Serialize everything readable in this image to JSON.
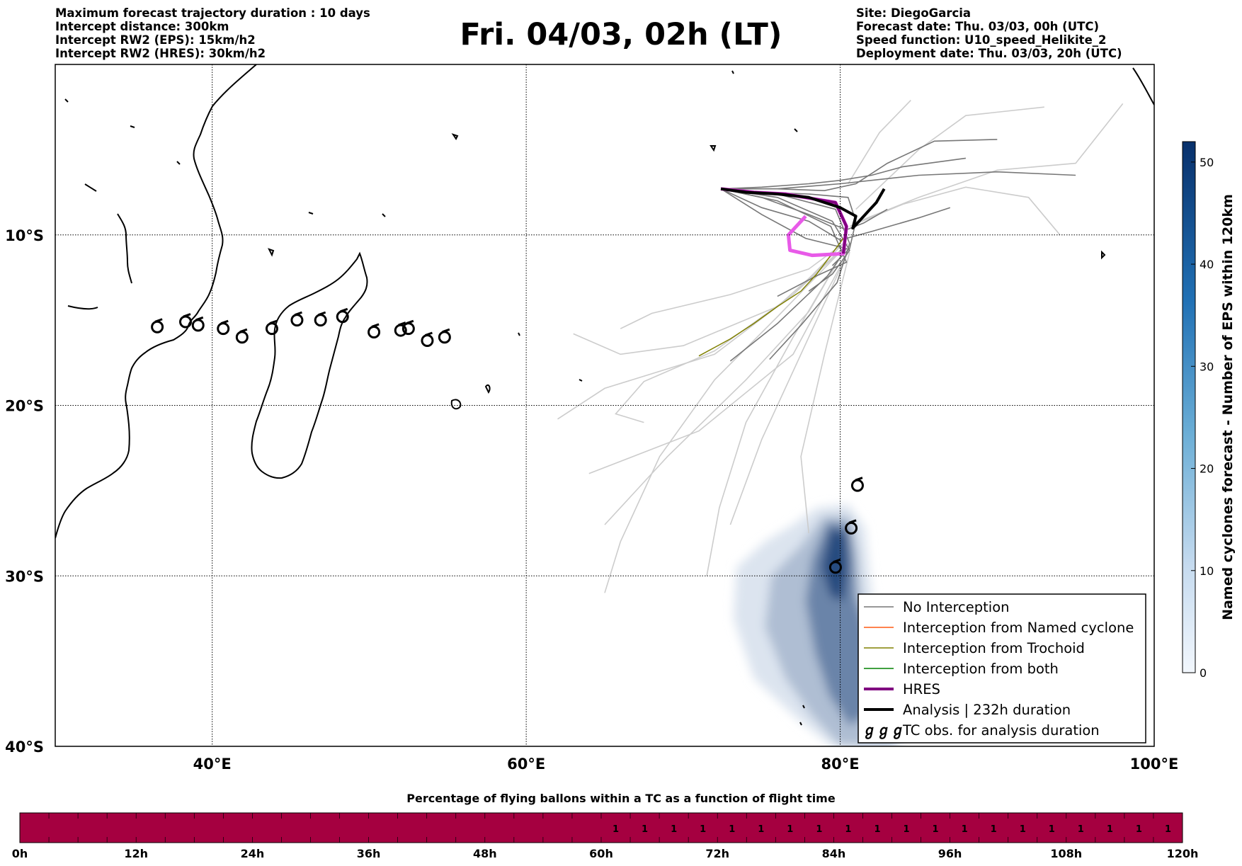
{
  "header": {
    "left_lines": [
      "Maximum forecast trajectory duration : 10 days",
      "Intercept distance: 300km",
      "Intercept RW2 (EPS):  15km/h2",
      "Intercept RW2 (HRES): 30km/h2"
    ],
    "right_lines": [
      "Site: DiegoGarcia",
      "Forecast date: Thu. 03/03, 00h (UTC)",
      "Speed function: U10_speed_Helikite_2",
      "Deployment date: Thu. 03/03, 20h (UTC)"
    ],
    "title": "Fri. 04/03, 02h (LT)"
  },
  "colors": {
    "no_interception": "#777777",
    "named_cyclone": "#ff5a14",
    "trochoid": "#808000",
    "both": "#008000",
    "hres": "#800080",
    "hres_highlight": "#e85ae8",
    "analysis": "#000000",
    "light_traj": "#cccccc",
    "bottom_bar": "#a50040",
    "cmap_light": "#f2f7fd",
    "cmap_dark": "#08306b"
  },
  "chart_data": [
    {
      "type": "map-trajectories",
      "xlim": [
        30,
        100
      ],
      "ylim": [
        -40,
        0
      ],
      "x_ticks": [
        {
          "value": 40,
          "label": "40°E"
        },
        {
          "value": 60,
          "label": "60°E"
        },
        {
          "value": 80,
          "label": "80°E"
        },
        {
          "value": 100,
          "label": "100°E"
        }
      ],
      "y_ticks": [
        {
          "value": -10,
          "label": "10°S"
        },
        {
          "value": -20,
          "label": "20°S"
        },
        {
          "value": -30,
          "label": "30°S"
        },
        {
          "value": -40,
          "label": "40°S"
        }
      ],
      "grid": true,
      "legend_position": "bottom-right",
      "legend": [
        {
          "label": "No Interception",
          "style": "no_interception"
        },
        {
          "label": "Interception from Named cyclone",
          "style": "named_cyclone"
        },
        {
          "label": "Interception from Trochoid",
          "style": "trochoid"
        },
        {
          "label": "Interception from both",
          "style": "both"
        },
        {
          "label": "HRES",
          "style": "hres"
        },
        {
          "label": "Analysis | 232h duration",
          "style": "analysis"
        },
        {
          "label": "TC obs. for analysis duration",
          "style": "tc_symbol",
          "symbol": "ℊℊℊ"
        }
      ],
      "launch_site": {
        "lon": 72.4,
        "lat": -7.3
      },
      "analysis_track": [
        [
          72.4,
          -7.3
        ],
        [
          74,
          -7.5
        ],
        [
          76,
          -7.6
        ],
        [
          78,
          -7.8
        ],
        [
          80,
          -8.4
        ],
        [
          81,
          -8.9
        ],
        [
          80.8,
          -9.6
        ],
        [
          81.2,
          -9.2
        ],
        [
          81.8,
          -8.6
        ],
        [
          82.3,
          -8.1
        ],
        [
          82.8,
          -7.3
        ]
      ],
      "hres_track": [
        [
          72.4,
          -7.3
        ],
        [
          74.5,
          -7.5
        ],
        [
          76.5,
          -7.6
        ],
        [
          79.7,
          -8.1
        ],
        [
          80.4,
          -9.5
        ],
        [
          80.2,
          -11.1
        ],
        [
          78.2,
          -11.2
        ],
        [
          76.8,
          -10.9
        ],
        [
          76.7,
          -10
        ],
        [
          77.8,
          -8.9
        ]
      ],
      "trochoid_track": [
        [
          80.2,
          -10.2
        ],
        [
          79.4,
          -11.2
        ],
        [
          78.5,
          -12.3
        ],
        [
          77.5,
          -13.3
        ],
        [
          76,
          -14.2
        ],
        [
          74.5,
          -15.2
        ],
        [
          73,
          -16.1
        ],
        [
          71,
          -17.1
        ]
      ],
      "eps_dark_tracks": [
        [
          [
            72.4,
            -7.3
          ],
          [
            75,
            -7.8
          ],
          [
            78,
            -8.8
          ],
          [
            80.4,
            -9.7
          ],
          [
            81.5,
            -9.3
          ],
          [
            83,
            -8.5
          ]
        ],
        [
          [
            72.4,
            -7.3
          ],
          [
            75,
            -7.2
          ],
          [
            78,
            -7.0
          ],
          [
            80,
            -6.8
          ],
          [
            82,
            -6.5
          ],
          [
            84,
            -6.0
          ],
          [
            88,
            -5.5
          ]
        ],
        [
          [
            72.4,
            -7.3
          ],
          [
            76,
            -7.3
          ],
          [
            80,
            -7.0
          ],
          [
            85,
            -6.5
          ],
          [
            90,
            -6.3
          ],
          [
            95,
            -6.5
          ]
        ],
        [
          [
            72.4,
            -7.3
          ],
          [
            76,
            -7.8
          ],
          [
            79.5,
            -9.2
          ],
          [
            80.6,
            -10.9
          ],
          [
            79.5,
            -12.3
          ],
          [
            78,
            -13.3
          ]
        ],
        [
          [
            72.4,
            -7.3
          ],
          [
            76,
            -7.6
          ],
          [
            79.7,
            -8.5
          ],
          [
            80.6,
            -10.5
          ],
          [
            79.8,
            -12.8
          ],
          [
            77.5,
            -15.3
          ],
          [
            75.5,
            -17.3
          ]
        ],
        [
          [
            72.4,
            -7.3
          ],
          [
            76,
            -8.0
          ],
          [
            79.4,
            -9.5
          ],
          [
            80.4,
            -11.6
          ],
          [
            78.5,
            -12.4
          ],
          [
            76,
            -13.6
          ]
        ],
        [
          [
            72.4,
            -7.3
          ],
          [
            76,
            -7.3
          ],
          [
            79,
            -7.4
          ],
          [
            81,
            -7.0
          ],
          [
            83,
            -5.8
          ],
          [
            86,
            -4.5
          ],
          [
            90,
            -4.4
          ]
        ],
        [
          [
            72.4,
            -7.3
          ],
          [
            75,
            -8.4
          ],
          [
            78,
            -9.2
          ],
          [
            80,
            -10.3
          ],
          [
            82,
            -9.8
          ],
          [
            85,
            -9.0
          ],
          [
            87,
            -8.4
          ]
        ],
        [
          [
            72.4,
            -7.3
          ],
          [
            75,
            -8.8
          ],
          [
            77.8,
            -10.2
          ],
          [
            80.4,
            -10.8
          ],
          [
            79.2,
            -12.4
          ],
          [
            76,
            -15.2
          ],
          [
            73,
            -17.4
          ]
        ],
        [
          [
            72.4,
            -7.3
          ],
          [
            75,
            -7.5
          ],
          [
            78,
            -7.6
          ],
          [
            80.5,
            -7.8
          ],
          [
            81,
            -9.2
          ],
          [
            80.6,
            -10.8
          ],
          [
            79.5,
            -11.8
          ]
        ]
      ],
      "eps_light_tracks": [
        [
          [
            80.2,
            -10.5
          ],
          [
            77,
            -13.5
          ],
          [
            72,
            -17
          ],
          [
            65,
            -19
          ],
          [
            62,
            -20.8
          ]
        ],
        [
          [
            80,
            -11
          ],
          [
            76,
            -14.8
          ],
          [
            72,
            -18.5
          ],
          [
            68.5,
            -23
          ],
          [
            66,
            -28
          ],
          [
            65,
            -31
          ]
        ],
        [
          [
            80.2,
            -11
          ],
          [
            77,
            -16
          ],
          [
            74,
            -21
          ],
          [
            72.3,
            -26
          ],
          [
            71.5,
            -30
          ]
        ],
        [
          [
            80.2,
            -11
          ],
          [
            78,
            -14.5
          ],
          [
            74,
            -18.5
          ],
          [
            69,
            -23
          ],
          [
            65,
            -27
          ]
        ],
        [
          [
            80.2,
            -10.8
          ],
          [
            77,
            -13.5
          ],
          [
            72,
            -16.8
          ],
          [
            67.5,
            -18.6
          ],
          [
            65.7,
            -20.5
          ],
          [
            67.5,
            -21
          ]
        ],
        [
          [
            80.5,
            -10.5
          ],
          [
            76,
            -14.2
          ],
          [
            70,
            -16.5
          ],
          [
            66,
            -17
          ],
          [
            63,
            -15.8
          ]
        ],
        [
          [
            80.6,
            -11
          ],
          [
            79,
            -17
          ],
          [
            77.5,
            -23
          ],
          [
            78,
            -27.5
          ]
        ],
        [
          [
            80.5,
            -11
          ],
          [
            78,
            -16
          ],
          [
            75,
            -22
          ],
          [
            73,
            -27
          ]
        ],
        [
          [
            80.6,
            -9.5
          ],
          [
            84,
            -8.2
          ],
          [
            88,
            -7.2
          ],
          [
            92,
            -7.8
          ],
          [
            94,
            -10
          ]
        ],
        [
          [
            81,
            -8.5
          ],
          [
            85,
            -5
          ],
          [
            88,
            -3
          ],
          [
            93,
            -2.5
          ]
        ],
        [
          [
            81.2,
            -9.2
          ],
          [
            85,
            -7.8
          ],
          [
            90,
            -6.2
          ],
          [
            95,
            -5.8
          ],
          [
            98,
            -2.3
          ]
        ],
        [
          [
            80.5,
            -7
          ],
          [
            82.5,
            -4
          ],
          [
            84.5,
            -2.1
          ]
        ],
        [
          [
            80.2,
            -10.5
          ],
          [
            78,
            -12
          ],
          [
            73,
            -13.5
          ],
          [
            68,
            -14.6
          ],
          [
            66,
            -15.5
          ]
        ],
        [
          [
            80.5,
            -11
          ],
          [
            77,
            -17
          ],
          [
            71,
            -21.5
          ],
          [
            64,
            -24
          ]
        ]
      ],
      "density_contours": [
        {
          "level": 5,
          "points": [
            [
              78.5,
              -26
            ],
            [
              80.5,
              -25.8
            ],
            [
              81.6,
              -27.2
            ],
            [
              82.0,
              -31
            ],
            [
              83.5,
              -34.5
            ],
            [
              84,
              -38
            ],
            [
              84,
              -40
            ],
            [
              79.5,
              -40
            ],
            [
              77.3,
              -38.4
            ],
            [
              74.5,
              -36
            ],
            [
              73.2,
              -32.5
            ],
            [
              73.4,
              -29.5
            ],
            [
              75.2,
              -28
            ],
            [
              77,
              -27
            ]
          ]
        },
        {
          "level": 15,
          "points": [
            [
              78.9,
              -26.5
            ],
            [
              80.6,
              -26.5
            ],
            [
              81.1,
              -28.5
            ],
            [
              81.3,
              -31
            ],
            [
              82.8,
              -34.5
            ],
            [
              83.5,
              -38
            ],
            [
              83.5,
              -40
            ],
            [
              80,
              -40
            ],
            [
              78.2,
              -38.2
            ],
            [
              76.5,
              -36
            ],
            [
              75.2,
              -33
            ],
            [
              75.6,
              -30
            ],
            [
              77.5,
              -28.2
            ]
          ]
        },
        {
          "level": 30,
          "points": [
            [
              79.2,
              -26.8
            ],
            [
              80.6,
              -27
            ],
            [
              80.9,
              -29
            ],
            [
              81,
              -31.3
            ],
            [
              82.2,
              -34.5
            ],
            [
              82.8,
              -37.5
            ],
            [
              80.6,
              -38.8
            ],
            [
              79.3,
              -37
            ],
            [
              78.4,
              -34.5
            ],
            [
              77.8,
              -31.5
            ],
            [
              78.2,
              -29
            ]
          ]
        },
        {
          "level": 45,
          "points": [
            [
              79.4,
              -27.2
            ],
            [
              80.4,
              -27.5
            ],
            [
              80.5,
              -29.5
            ],
            [
              80.2,
              -31.5
            ],
            [
              79.4,
              -31.2
            ],
            [
              78.8,
              -29.5
            ]
          ]
        }
      ],
      "tc_obs": [
        [
          36.5,
          -15.4
        ],
        [
          38.3,
          -15.1
        ],
        [
          39.1,
          -15.3
        ],
        [
          40.7,
          -15.5
        ],
        [
          41.9,
          -16
        ],
        [
          43.8,
          -15.5
        ],
        [
          45.4,
          -15
        ],
        [
          46.9,
          -15
        ],
        [
          48.3,
          -14.8
        ],
        [
          50.3,
          -15.7
        ],
        [
          52,
          -15.6
        ],
        [
          52.5,
          -15.5
        ],
        [
          53.7,
          -16.2
        ],
        [
          54.8,
          -16
        ],
        [
          81.1,
          -24.7
        ],
        [
          80.7,
          -27.2
        ],
        [
          79.7,
          -29.5
        ]
      ]
    },
    {
      "type": "heatmap",
      "title": "Named cyclones forecast - Number of EPS within 120km",
      "ylim": [
        0,
        52
      ],
      "ticks": [
        0,
        10,
        20,
        30,
        40,
        50
      ]
    },
    {
      "type": "bar",
      "title": "Percentage of flying ballons within a TC as a function of flight time",
      "x_ticks": [
        "0h",
        "12h",
        "24h",
        "36h",
        "48h",
        "60h",
        "72h",
        "84h",
        "96h",
        "108h",
        "120h"
      ],
      "x_range_hours": [
        0,
        120
      ],
      "filled_start_hour": 0,
      "cell_start_hour": 60,
      "cell_step_hours": 3,
      "cell_labels": [
        "1",
        "1",
        "1",
        "1",
        "1",
        "1",
        "1",
        "1",
        "1",
        "1",
        "1",
        "1",
        "1",
        "1",
        "1",
        "1",
        "1",
        "1",
        "1",
        "1"
      ]
    }
  ]
}
